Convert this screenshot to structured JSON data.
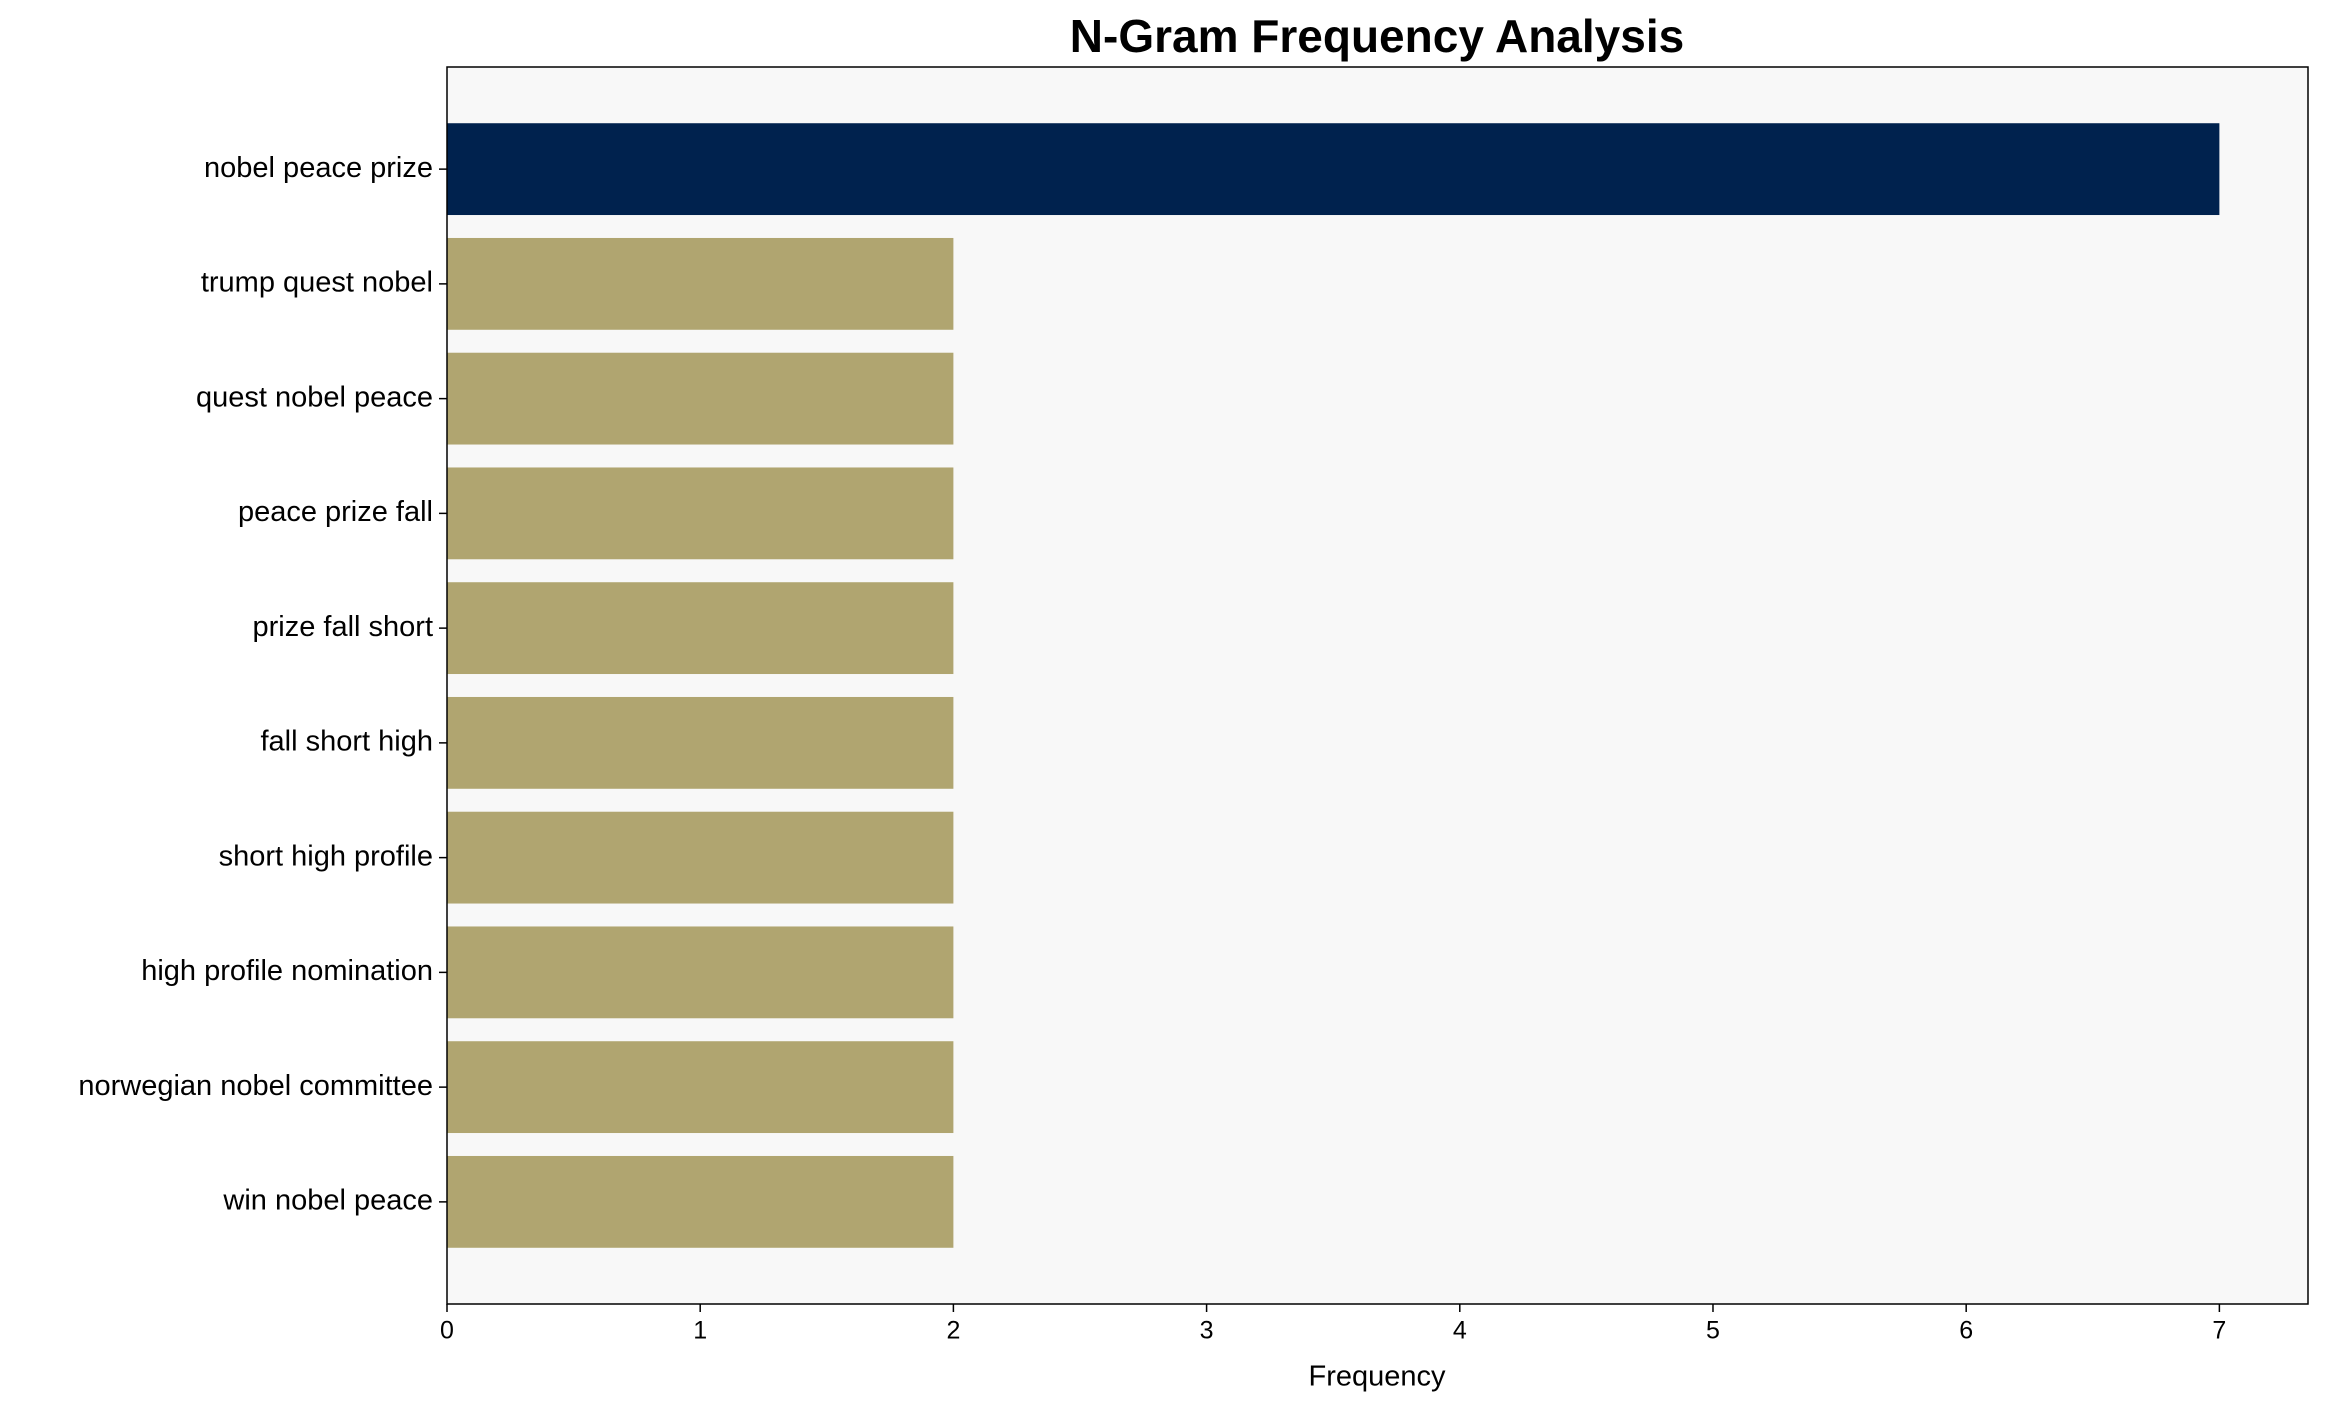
{
  "chart_data": {
    "type": "barh",
    "title": "N-Gram Frequency Analysis",
    "xlabel": "Frequency",
    "categories": [
      "nobel peace prize",
      "trump quest nobel",
      "quest nobel peace",
      "peace prize fall",
      "prize fall short",
      "fall short high",
      "short high profile",
      "high profile nomination",
      "norwegian nobel committee",
      "win nobel peace"
    ],
    "values": [
      7,
      2,
      2,
      2,
      2,
      2,
      2,
      2,
      2,
      2
    ],
    "colors": [
      "#00224e",
      "#b0a570",
      "#b0a570",
      "#b0a570",
      "#b0a570",
      "#b0a570",
      "#b0a570",
      "#b0a570",
      "#b0a570",
      "#b0a570"
    ],
    "xlim": [
      0,
      7.35
    ],
    "xticks": [
      0,
      1,
      2,
      3,
      4,
      5,
      6,
      7
    ],
    "grid": false
  }
}
